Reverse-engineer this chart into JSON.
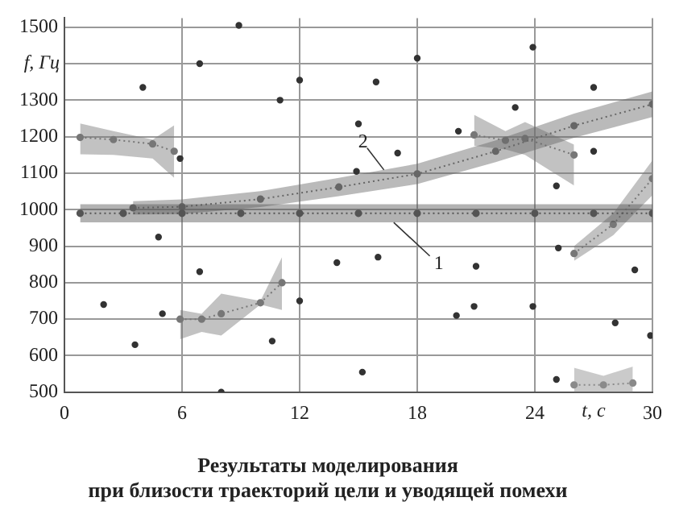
{
  "chart_data": {
    "type": "line",
    "title": "Результаты моделирования\nпри близости траекторий цели и уводящей помехи",
    "xlabel": "t, с",
    "ylabel": "f, Гц",
    "xlim": [
      0,
      30
    ],
    "xticks": [
      0,
      6,
      12,
      18,
      24,
      30
    ],
    "ylim": [
      500,
      1525
    ],
    "yticks": [
      500,
      600,
      700,
      800,
      900,
      1000,
      1100,
      1200,
      1300,
      {
        "value": 1400,
        "label": null
      },
      1500
    ],
    "grid": true,
    "legend": false,
    "marker": "circle",
    "line_style": "dotted",
    "annotations": [
      {
        "text": "1",
        "x": 16.8,
        "y": 965
      },
      {
        "text": "2",
        "x": 16.3,
        "y": 1109
      }
    ],
    "series": [
      {
        "color": "#555555",
        "x": [
          0.8,
          3,
          6,
          9,
          12,
          15,
          18,
          21,
          24,
          27,
          30
        ],
        "values": [
          990,
          990,
          990,
          990,
          990,
          990,
          990,
          990,
          990,
          990,
          990
        ],
        "lower": [
          965,
          965,
          965,
          965,
          965,
          965,
          965,
          965,
          965,
          965,
          965
        ],
        "upper": [
          1015,
          1015,
          1015,
          1015,
          1015,
          1015,
          1015,
          1015,
          1015,
          1015,
          1015
        ]
      },
      {
        "color": "#666666",
        "x": [
          3.5,
          6,
          10,
          14,
          18,
          22,
          26,
          30
        ],
        "values": [
          1005,
          1008,
          1029,
          1062,
          1098,
          1160,
          1230,
          1289
        ],
        "lower": [
          987,
          988,
          1007,
          1037,
          1070,
          1130,
          1197,
          1254
        ],
        "upper": [
          1023,
          1028,
          1051,
          1087,
          1126,
          1190,
          1263,
          1324
        ]
      },
      {
        "color": "#777777",
        "x": [
          0.8,
          2.5,
          4.5,
          5.6
        ],
        "values": [
          1198,
          1192,
          1180,
          1160
        ],
        "lower": [
          1152,
          1150,
          1140,
          1087
        ],
        "upper": [
          1236,
          1215,
          1192,
          1231
        ]
      },
      {
        "color": "#777777",
        "x": [
          5.9,
          7,
          8,
          10,
          11.1
        ],
        "values": [
          700,
          700,
          715,
          745,
          800
        ],
        "lower": [
          645,
          665,
          655,
          740,
          725
        ],
        "upper": [
          725,
          715,
          770,
          750,
          870
        ]
      },
      {
        "color": "#777777",
        "x": [
          20.9,
          22.5,
          23.5,
          26
        ],
        "values": [
          1205,
          1190,
          1195,
          1150
        ],
        "lower": [
          1175,
          1165,
          1150,
          1066
        ],
        "upper": [
          1260,
          1215,
          1240,
          1178
        ]
      },
      {
        "color": "#777777",
        "x": [
          26,
          28,
          30
        ],
        "values": [
          880,
          960,
          1085
        ],
        "lower": [
          860,
          930,
          1040
        ],
        "upper": [
          900,
          990,
          1135
        ]
      },
      {
        "color": "#8a8a8a",
        "x": [
          26,
          27.5,
          29
        ],
        "values": [
          520,
          520,
          525
        ],
        "lower": [
          500,
          500,
          500
        ],
        "upper": [
          567,
          545,
          570
        ]
      },
      {
        "type": "scatter",
        "color": "#333333",
        "x": [
          6.9,
          8.9,
          4,
          12,
          11,
          5.9,
          4.8,
          23.9,
          18,
          15.9,
          27,
          23,
          15,
          20.1,
          17,
          27,
          14.9,
          25.1,
          2,
          3.6,
          5,
          6.9,
          8,
          10.6,
          12,
          13.9,
          16,
          21,
          20,
          20.9,
          23.9,
          15.2,
          25.1,
          29.1,
          28.1,
          29.9,
          25.2
        ],
        "values": [
          1400,
          1505,
          1335,
          1355,
          1300,
          1140,
          925,
          1445,
          1415,
          1350,
          1335,
          1280,
          1235,
          1215,
          1155,
          1160,
          1105,
          1065,
          740,
          630,
          715,
          830,
          500,
          640,
          750,
          855,
          870,
          845,
          710,
          735,
          735,
          555,
          535,
          835,
          690,
          655,
          895
        ]
      }
    ]
  }
}
